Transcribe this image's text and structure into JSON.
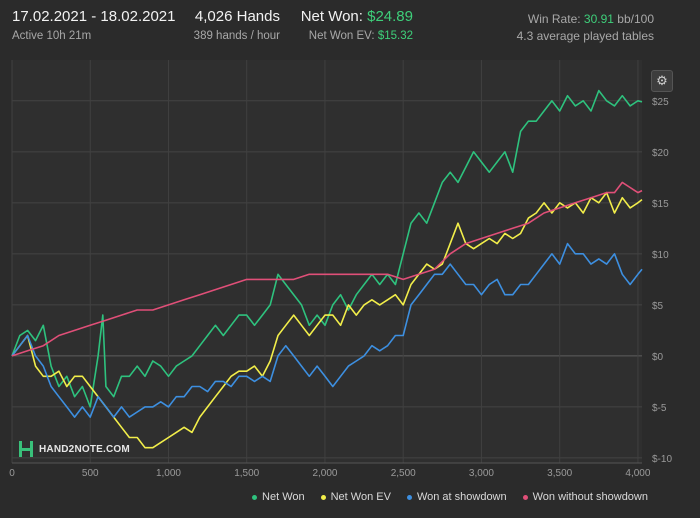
{
  "header": {
    "date_range": "17.02.2021 - 18.02.2021",
    "active": "Active 10h 21m",
    "hands": "4,026 Hands",
    "hands_per_hour": "389 hands / hour",
    "net_won_label": "Net Won:",
    "net_won_value": "$24.89",
    "net_won_ev_label": "Net Won  EV:",
    "net_won_ev_value": "$15.32",
    "win_rate_label": "Win Rate:",
    "win_rate_value": "30.91",
    "win_rate_unit": "bb/100",
    "avg_tables": "4.3 average played tables"
  },
  "logo": {
    "text": "HAND2NOTE.COM"
  },
  "settings": {
    "icon": "gear-icon"
  },
  "chart_data": {
    "type": "line",
    "xlim": [
      0,
      4026
    ],
    "ylim": [
      -10.5,
      29
    ],
    "x_ticks": [
      0,
      500,
      1000,
      1500,
      2000,
      2500,
      3000,
      3500,
      4000
    ],
    "x_tick_labels": [
      "0",
      "500",
      "1,000",
      "1,500",
      "2,000",
      "2,500",
      "3,000",
      "3,500",
      "4,000"
    ],
    "y_ticks": [
      -10,
      -5,
      0,
      5,
      10,
      15,
      20,
      25
    ],
    "y_tick_labels": [
      "$-10",
      "$-5",
      "$0",
      "$5",
      "$10",
      "$15",
      "$20",
      "$25"
    ],
    "grid": true,
    "legend_position": "bottom-right",
    "series": [
      {
        "name": "Net Won",
        "color": "#2ec27e",
        "points": [
          [
            0,
            0
          ],
          [
            50,
            2
          ],
          [
            100,
            2.5
          ],
          [
            150,
            1.5
          ],
          [
            200,
            3
          ],
          [
            250,
            -1
          ],
          [
            300,
            -3
          ],
          [
            350,
            -2
          ],
          [
            400,
            -4
          ],
          [
            450,
            -3
          ],
          [
            500,
            -5
          ],
          [
            550,
            0
          ],
          [
            580,
            4
          ],
          [
            600,
            -3
          ],
          [
            650,
            -4
          ],
          [
            700,
            -2
          ],
          [
            750,
            -2
          ],
          [
            800,
            -1
          ],
          [
            850,
            -2
          ],
          [
            900,
            -0.5
          ],
          [
            950,
            -1
          ],
          [
            1000,
            -2
          ],
          [
            1050,
            -1
          ],
          [
            1100,
            -0.5
          ],
          [
            1150,
            0
          ],
          [
            1200,
            1
          ],
          [
            1250,
            2
          ],
          [
            1300,
            3
          ],
          [
            1350,
            2
          ],
          [
            1400,
            3
          ],
          [
            1450,
            4
          ],
          [
            1500,
            4
          ],
          [
            1550,
            3
          ],
          [
            1600,
            4
          ],
          [
            1650,
            5
          ],
          [
            1700,
            8
          ],
          [
            1750,
            7
          ],
          [
            1800,
            6
          ],
          [
            1850,
            5
          ],
          [
            1900,
            3
          ],
          [
            1950,
            4
          ],
          [
            2000,
            3
          ],
          [
            2050,
            5
          ],
          [
            2100,
            6
          ],
          [
            2150,
            4.5
          ],
          [
            2200,
            6
          ],
          [
            2250,
            7
          ],
          [
            2300,
            8
          ],
          [
            2350,
            7
          ],
          [
            2400,
            8
          ],
          [
            2450,
            7
          ],
          [
            2500,
            10
          ],
          [
            2550,
            13
          ],
          [
            2600,
            14
          ],
          [
            2650,
            13
          ],
          [
            2700,
            15
          ],
          [
            2750,
            17
          ],
          [
            2800,
            18
          ],
          [
            2850,
            17
          ],
          [
            2900,
            18.5
          ],
          [
            2950,
            20
          ],
          [
            3000,
            19
          ],
          [
            3050,
            18
          ],
          [
            3100,
            19
          ],
          [
            3150,
            20
          ],
          [
            3200,
            18
          ],
          [
            3250,
            22
          ],
          [
            3300,
            23
          ],
          [
            3350,
            23
          ],
          [
            3400,
            24
          ],
          [
            3450,
            25
          ],
          [
            3500,
            24
          ],
          [
            3550,
            25.5
          ],
          [
            3600,
            24.5
          ],
          [
            3650,
            25
          ],
          [
            3700,
            24
          ],
          [
            3750,
            26
          ],
          [
            3800,
            25
          ],
          [
            3850,
            24.5
          ],
          [
            3900,
            25.5
          ],
          [
            3950,
            24.5
          ],
          [
            4000,
            25
          ],
          [
            4026,
            24.89
          ]
        ]
      },
      {
        "name": "Net Won  EV",
        "color": "#f2ee4a",
        "points": [
          [
            0,
            0
          ],
          [
            50,
            1
          ],
          [
            100,
            2
          ],
          [
            150,
            -1
          ],
          [
            200,
            -2
          ],
          [
            250,
            -2
          ],
          [
            300,
            -1.5
          ],
          [
            350,
            -3
          ],
          [
            400,
            -2
          ],
          [
            450,
            -2
          ],
          [
            500,
            -3
          ],
          [
            550,
            -4
          ],
          [
            600,
            -5
          ],
          [
            650,
            -6
          ],
          [
            700,
            -7
          ],
          [
            750,
            -8
          ],
          [
            800,
            -8
          ],
          [
            850,
            -9
          ],
          [
            900,
            -9
          ],
          [
            950,
            -8.5
          ],
          [
            1000,
            -8
          ],
          [
            1050,
            -7.5
          ],
          [
            1100,
            -7
          ],
          [
            1150,
            -7.5
          ],
          [
            1200,
            -6
          ],
          [
            1250,
            -5
          ],
          [
            1300,
            -4
          ],
          [
            1350,
            -3
          ],
          [
            1400,
            -2
          ],
          [
            1450,
            -1.5
          ],
          [
            1500,
            -1.5
          ],
          [
            1550,
            -1
          ],
          [
            1600,
            -2
          ],
          [
            1650,
            -0.5
          ],
          [
            1700,
            2
          ],
          [
            1750,
            3
          ],
          [
            1800,
            4
          ],
          [
            1850,
            3
          ],
          [
            1900,
            2
          ],
          [
            1950,
            3
          ],
          [
            2000,
            4
          ],
          [
            2050,
            4
          ],
          [
            2100,
            3
          ],
          [
            2150,
            5
          ],
          [
            2200,
            4
          ],
          [
            2250,
            5
          ],
          [
            2300,
            5.5
          ],
          [
            2350,
            5
          ],
          [
            2400,
            5.5
          ],
          [
            2450,
            6
          ],
          [
            2500,
            5
          ],
          [
            2550,
            7
          ],
          [
            2600,
            8
          ],
          [
            2650,
            9
          ],
          [
            2700,
            8.5
          ],
          [
            2750,
            9
          ],
          [
            2800,
            11
          ],
          [
            2850,
            13
          ],
          [
            2900,
            11
          ],
          [
            2950,
            10.5
          ],
          [
            3000,
            11
          ],
          [
            3050,
            11.5
          ],
          [
            3100,
            11
          ],
          [
            3150,
            12
          ],
          [
            3200,
            11.5
          ],
          [
            3250,
            12
          ],
          [
            3300,
            13.5
          ],
          [
            3350,
            14
          ],
          [
            3400,
            15
          ],
          [
            3450,
            14
          ],
          [
            3500,
            15
          ],
          [
            3550,
            14.5
          ],
          [
            3600,
            15
          ],
          [
            3650,
            14
          ],
          [
            3700,
            15.5
          ],
          [
            3750,
            15
          ],
          [
            3800,
            16
          ],
          [
            3850,
            14
          ],
          [
            3900,
            15.5
          ],
          [
            3950,
            14.5
          ],
          [
            4000,
            15
          ],
          [
            4026,
            15.32
          ]
        ]
      },
      {
        "name": "Won at showdown",
        "color": "#3d8fe0",
        "points": [
          [
            0,
            0
          ],
          [
            50,
            1
          ],
          [
            100,
            2
          ],
          [
            150,
            0
          ],
          [
            200,
            -1
          ],
          [
            250,
            -3
          ],
          [
            300,
            -4
          ],
          [
            350,
            -5
          ],
          [
            400,
            -6
          ],
          [
            450,
            -5
          ],
          [
            500,
            -6
          ],
          [
            550,
            -4
          ],
          [
            600,
            -5
          ],
          [
            650,
            -6
          ],
          [
            700,
            -5
          ],
          [
            750,
            -6
          ],
          [
            800,
            -5.5
          ],
          [
            850,
            -5
          ],
          [
            900,
            -5
          ],
          [
            950,
            -4.5
          ],
          [
            1000,
            -5
          ],
          [
            1050,
            -4
          ],
          [
            1100,
            -4
          ],
          [
            1150,
            -3
          ],
          [
            1200,
            -3
          ],
          [
            1250,
            -3.5
          ],
          [
            1300,
            -2.5
          ],
          [
            1350,
            -2.5
          ],
          [
            1400,
            -3
          ],
          [
            1450,
            -2
          ],
          [
            1500,
            -2
          ],
          [
            1550,
            -2.5
          ],
          [
            1600,
            -2
          ],
          [
            1650,
            -2.5
          ],
          [
            1700,
            0
          ],
          [
            1750,
            1
          ],
          [
            1800,
            0
          ],
          [
            1850,
            -1
          ],
          [
            1900,
            -2
          ],
          [
            1950,
            -1
          ],
          [
            2000,
            -2
          ],
          [
            2050,
            -3
          ],
          [
            2100,
            -2
          ],
          [
            2150,
            -1
          ],
          [
            2200,
            -0.5
          ],
          [
            2250,
            0
          ],
          [
            2300,
            1
          ],
          [
            2350,
            0.5
          ],
          [
            2400,
            1
          ],
          [
            2450,
            2
          ],
          [
            2500,
            2
          ],
          [
            2550,
            5
          ],
          [
            2600,
            6
          ],
          [
            2650,
            7
          ],
          [
            2700,
            8
          ],
          [
            2750,
            8
          ],
          [
            2800,
            9
          ],
          [
            2850,
            8
          ],
          [
            2900,
            7
          ],
          [
            2950,
            7
          ],
          [
            3000,
            6
          ],
          [
            3050,
            7
          ],
          [
            3100,
            7.5
          ],
          [
            3150,
            6
          ],
          [
            3200,
            6
          ],
          [
            3250,
            7
          ],
          [
            3300,
            7
          ],
          [
            3350,
            8
          ],
          [
            3400,
            9
          ],
          [
            3450,
            10
          ],
          [
            3500,
            9
          ],
          [
            3550,
            11
          ],
          [
            3600,
            10
          ],
          [
            3650,
            10
          ],
          [
            3700,
            9
          ],
          [
            3750,
            9.5
          ],
          [
            3800,
            9
          ],
          [
            3850,
            10
          ],
          [
            3900,
            8
          ],
          [
            3950,
            7
          ],
          [
            4000,
            8
          ],
          [
            4026,
            8.5
          ]
        ]
      },
      {
        "name": "Won without showdown",
        "color": "#e04f78",
        "points": [
          [
            0,
            0
          ],
          [
            100,
            0.5
          ],
          [
            200,
            1
          ],
          [
            300,
            2
          ],
          [
            400,
            2.5
          ],
          [
            500,
            3
          ],
          [
            600,
            3.5
          ],
          [
            700,
            4
          ],
          [
            800,
            4.5
          ],
          [
            900,
            4.5
          ],
          [
            1000,
            5
          ],
          [
            1100,
            5.5
          ],
          [
            1200,
            6
          ],
          [
            1300,
            6.5
          ],
          [
            1400,
            7
          ],
          [
            1500,
            7.5
          ],
          [
            1600,
            7.5
          ],
          [
            1700,
            7.5
          ],
          [
            1800,
            7.5
          ],
          [
            1900,
            8
          ],
          [
            2000,
            8
          ],
          [
            2100,
            8
          ],
          [
            2200,
            8
          ],
          [
            2300,
            8
          ],
          [
            2400,
            8
          ],
          [
            2500,
            7.5
          ],
          [
            2600,
            8
          ],
          [
            2700,
            8.5
          ],
          [
            2800,
            10
          ],
          [
            2900,
            11
          ],
          [
            3000,
            11.5
          ],
          [
            3100,
            12
          ],
          [
            3200,
            12.5
          ],
          [
            3300,
            13
          ],
          [
            3400,
            14
          ],
          [
            3500,
            14.5
          ],
          [
            3600,
            15
          ],
          [
            3700,
            15.5
          ],
          [
            3800,
            16
          ],
          [
            3850,
            16
          ],
          [
            3900,
            17
          ],
          [
            3950,
            16.5
          ],
          [
            4000,
            16
          ],
          [
            4026,
            16.2
          ]
        ]
      }
    ]
  }
}
